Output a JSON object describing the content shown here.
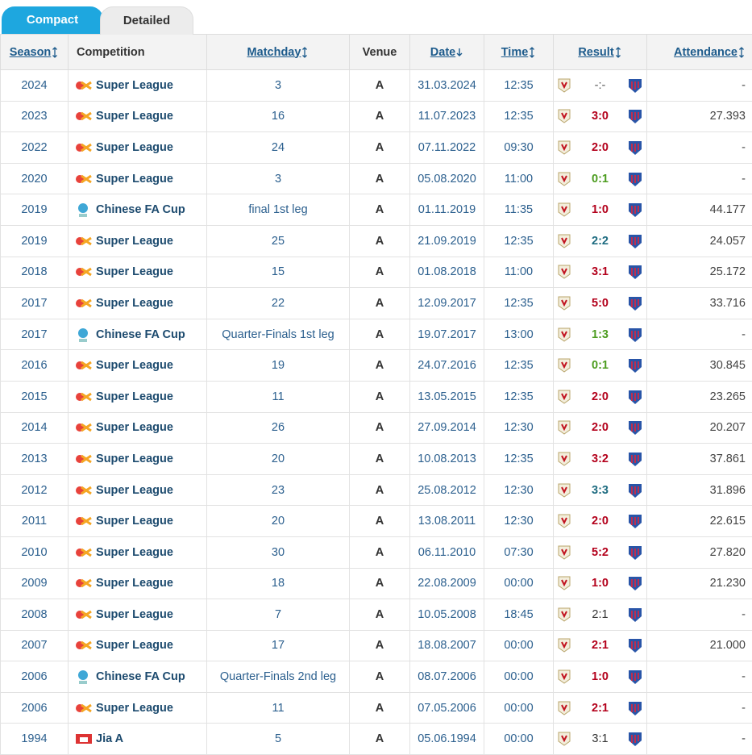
{
  "tabs": [
    "Compact",
    "Detailed"
  ],
  "headers": [
    "Season",
    "Competition",
    "Matchday",
    "Venue",
    "Date",
    "Time",
    "Result",
    "Attendance"
  ],
  "rows": [
    {
      "season": "2024",
      "competition": "Super League",
      "matchday": "3",
      "venue": "A",
      "date": "31.03.2024",
      "time": "12:35",
      "result": "-:-",
      "result_color": "#555555",
      "attendance": "-"
    },
    {
      "season": "2023",
      "competition": "Super League",
      "matchday": "16",
      "venue": "A",
      "date": "11.07.2023",
      "time": "12:35",
      "result": "3:0",
      "result_color": "#b3001b",
      "attendance": "27.393"
    },
    {
      "season": "2022",
      "competition": "Super League",
      "matchday": "24",
      "venue": "A",
      "date": "07.11.2022",
      "time": "09:30",
      "result": "2:0",
      "result_color": "#b3001b",
      "attendance": "-"
    },
    {
      "season": "2020",
      "competition": "Super League",
      "matchday": "3",
      "venue": "A",
      "date": "05.08.2020",
      "time": "11:00",
      "result": "0:1",
      "result_color": "#4c9c1f",
      "attendance": "-"
    },
    {
      "season": "2019",
      "competition": "Chinese FA Cup",
      "matchday": "final 1st leg",
      "venue": "A",
      "date": "01.11.2019",
      "time": "11:35",
      "result": "1:0",
      "result_color": "#b3001b",
      "attendance": "44.177"
    },
    {
      "season": "2019",
      "competition": "Super League",
      "matchday": "25",
      "venue": "A",
      "date": "21.09.2019",
      "time": "12:35",
      "result": "2:2",
      "result_color": "#1d6b80",
      "attendance": "24.057"
    },
    {
      "season": "2018",
      "competition": "Super League",
      "matchday": "15",
      "venue": "A",
      "date": "01.08.2018",
      "time": "11:00",
      "result": "3:1",
      "result_color": "#b3001b",
      "attendance": "25.172"
    },
    {
      "season": "2017",
      "competition": "Super League",
      "matchday": "22",
      "venue": "A",
      "date": "12.09.2017",
      "time": "12:35",
      "result": "5:0",
      "result_color": "#b3001b",
      "attendance": "33.716"
    },
    {
      "season": "2017",
      "competition": "Chinese FA Cup",
      "matchday": "Quarter-Finals 1st leg",
      "venue": "A",
      "date": "19.07.2017",
      "time": "13:00",
      "result": "1:3",
      "result_color": "#4c9c1f",
      "attendance": "-"
    },
    {
      "season": "2016",
      "competition": "Super League",
      "matchday": "19",
      "venue": "A",
      "date": "24.07.2016",
      "time": "12:35",
      "result": "0:1",
      "result_color": "#4c9c1f",
      "attendance": "30.845"
    },
    {
      "season": "2015",
      "competition": "Super League",
      "matchday": "11",
      "venue": "A",
      "date": "13.05.2015",
      "time": "12:35",
      "result": "2:0",
      "result_color": "#b3001b",
      "attendance": "23.265"
    },
    {
      "season": "2014",
      "competition": "Super League",
      "matchday": "26",
      "venue": "A",
      "date": "27.09.2014",
      "time": "12:30",
      "result": "2:0",
      "result_color": "#b3001b",
      "attendance": "20.207"
    },
    {
      "season": "2013",
      "competition": "Super League",
      "matchday": "20",
      "venue": "A",
      "date": "10.08.2013",
      "time": "12:35",
      "result": "3:2",
      "result_color": "#b3001b",
      "attendance": "37.861"
    },
    {
      "season": "2012",
      "competition": "Super League",
      "matchday": "23",
      "venue": "A",
      "date": "25.08.2012",
      "time": "12:30",
      "result": "3:3",
      "result_color": "#1d6b80",
      "attendance": "31.896"
    },
    {
      "season": "2011",
      "competition": "Super League",
      "matchday": "20",
      "venue": "A",
      "date": "13.08.2011",
      "time": "12:30",
      "result": "2:0",
      "result_color": "#b3001b",
      "attendance": "22.615"
    },
    {
      "season": "2010",
      "competition": "Super League",
      "matchday": "30",
      "venue": "A",
      "date": "06.11.2010",
      "time": "07:30",
      "result": "5:2",
      "result_color": "#b3001b",
      "attendance": "27.820"
    },
    {
      "season": "2009",
      "competition": "Super League",
      "matchday": "18",
      "venue": "A",
      "date": "22.08.2009",
      "time": "00:00",
      "result": "1:0",
      "result_color": "#b3001b",
      "attendance": "21.230"
    },
    {
      "season": "2008",
      "competition": "Super League",
      "matchday": "7",
      "venue": "A",
      "date": "10.05.2008",
      "time": "18:45",
      "result": "2:1",
      "result_color": "#333333",
      "attendance": "-"
    },
    {
      "season": "2007",
      "competition": "Super League",
      "matchday": "17",
      "venue": "A",
      "date": "18.08.2007",
      "time": "00:00",
      "result": "2:1",
      "result_color": "#b3001b",
      "attendance": "21.000"
    },
    {
      "season": "2006",
      "competition": "Chinese FA Cup",
      "matchday": "Quarter-Finals 2nd leg",
      "venue": "A",
      "date": "08.07.2006",
      "time": "00:00",
      "result": "1:0",
      "result_color": "#b3001b",
      "attendance": "-"
    },
    {
      "season": "2006",
      "competition": "Super League",
      "matchday": "11",
      "venue": "A",
      "date": "07.05.2006",
      "time": "00:00",
      "result": "2:1",
      "result_color": "#b3001b",
      "attendance": "-"
    },
    {
      "season": "1994",
      "competition": "Jia A",
      "matchday": "5",
      "venue": "A",
      "date": "05.06.1994",
      "time": "00:00",
      "result": "3:1",
      "result_color": "#333333",
      "attendance": "-"
    }
  ]
}
